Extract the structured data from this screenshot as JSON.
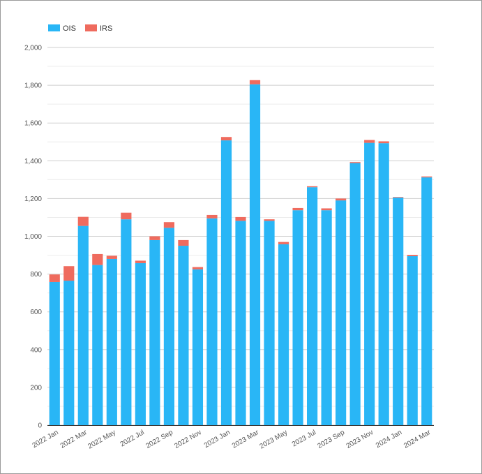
{
  "chart_data": {
    "type": "bar",
    "stacked": true,
    "legend": "top-left",
    "grid": true,
    "ylim": [
      0,
      2000
    ],
    "yticks": [
      "0",
      "200",
      "400",
      "600",
      "800",
      "1,000",
      "1,200",
      "1,400",
      "1,600",
      "1,800",
      "2,000"
    ],
    "categories": [
      "2022 Jan",
      "2022 Feb",
      "2022 Mar",
      "2022 Apr",
      "2022 May",
      "2022 Jun",
      "2022 Jul",
      "2022 Aug",
      "2022 Sep",
      "2022 Oct",
      "2022 Nov",
      "2022 Dec",
      "2023 Jan",
      "2023 Feb",
      "2023 Mar",
      "2023 Apr",
      "2023 May",
      "2023 Jun",
      "2023 Jul",
      "2023 Aug",
      "2023 Sep",
      "2023 Oct",
      "2023 Nov",
      "2023 Dec",
      "2024 Jan",
      "2024 Feb",
      "2024 Mar"
    ],
    "xtick_labels": [
      "2022 Jan",
      "2022 Mar",
      "2022 May",
      "2022 Jul",
      "2022 Sep",
      "2022 Nov",
      "2023 Jan",
      "2023 Mar",
      "2023 May",
      "2023 Jul",
      "2023 Sep",
      "2023 Nov",
      "2024 Jan",
      "2024 Mar"
    ],
    "series": [
      {
        "name": "OIS",
        "color": "#29b6f6",
        "values": [
          758,
          765,
          1055,
          848,
          880,
          1090,
          858,
          980,
          1045,
          950,
          825,
          1095,
          1508,
          1082,
          1805,
          1082,
          958,
          1138,
          1260,
          1138,
          1190,
          1388,
          1495,
          1493,
          1205,
          895,
          1312
        ]
      },
      {
        "name": "IRS",
        "color": "#ef6b5e",
        "values": [
          40,
          77,
          48,
          58,
          17,
          35,
          13,
          20,
          30,
          30,
          12,
          18,
          18,
          20,
          22,
          8,
          12,
          12,
          5,
          10,
          10,
          5,
          15,
          10,
          3,
          7,
          5
        ]
      }
    ]
  }
}
